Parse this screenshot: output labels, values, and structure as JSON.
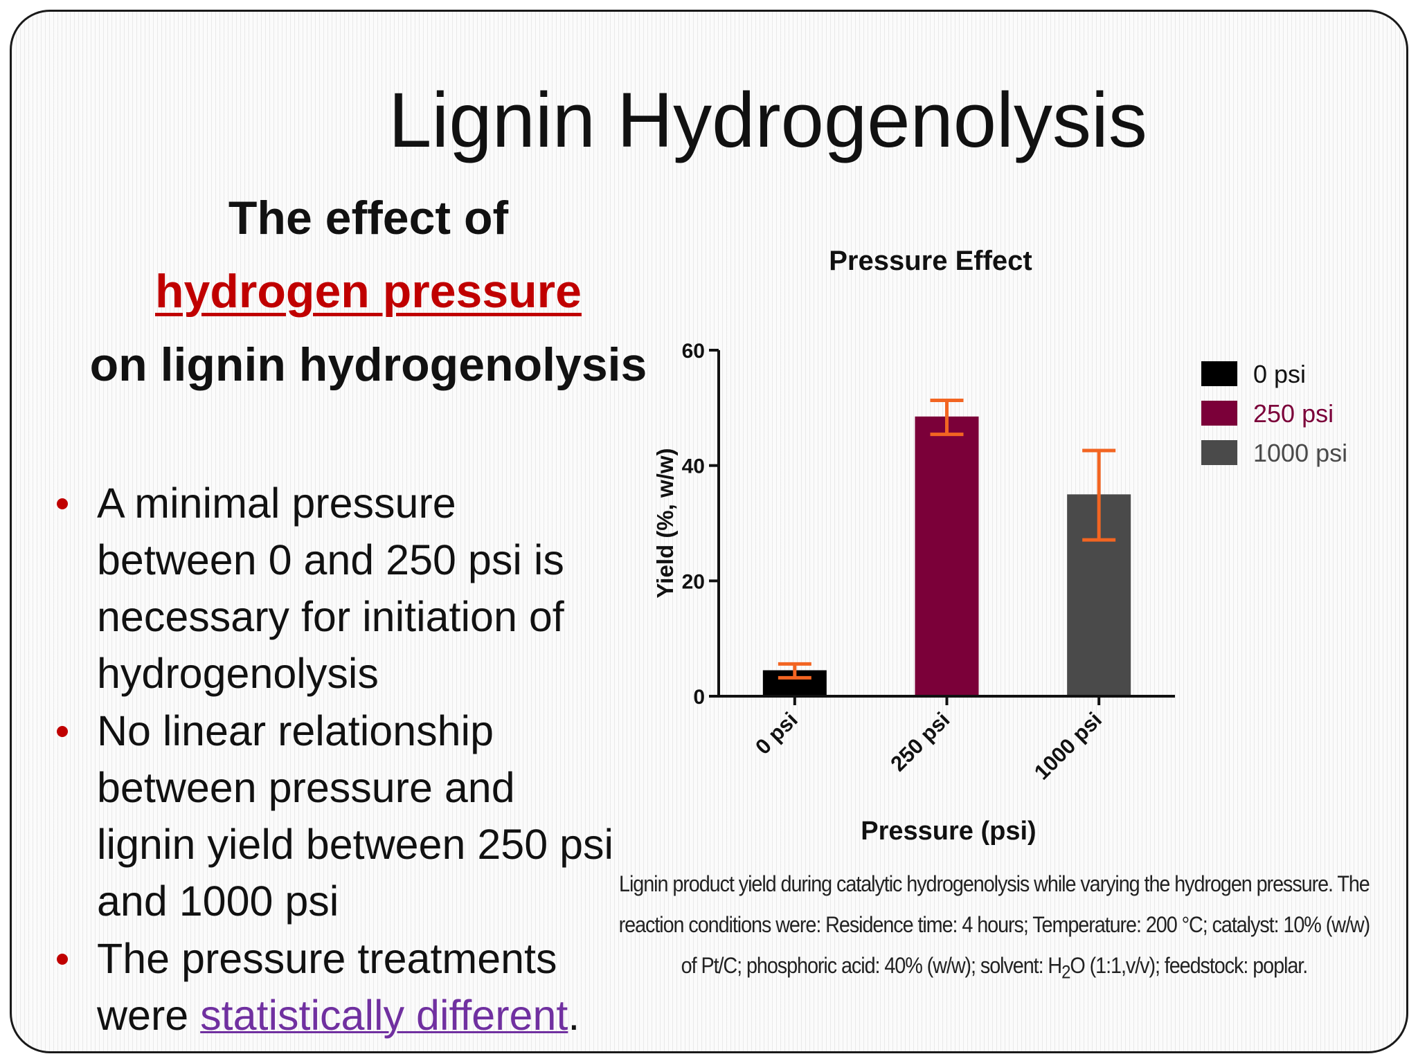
{
  "slide": {
    "title": "Lignin Hydrogenolysis",
    "subtitle": {
      "line1": "The effect of",
      "line2": "hydrogen pressure",
      "line3": "on lignin hydrogenolysis"
    },
    "bullets": [
      {
        "lines": [
          "A minimal pressure",
          "between 0 and 250 psi is",
          "necessary for initiation of",
          "hydrogenolysis"
        ]
      },
      {
        "lines": [
          "No linear relationship",
          "between pressure and",
          "lignin yield between 250 psi",
          "and 1000 psi"
        ]
      },
      {
        "lines": [
          "The pressure treatments"
        ],
        "last_prefix": "were ",
        "last_link": "statistically different",
        "last_suffix": "."
      }
    ],
    "caption": {
      "text1": "Lignin product yield during catalytic hydrogenolysis while varying the hydrogen pressure. The reaction conditions were:  Residence time: 4 hours; Temperature: 200 °C; catalyst: 10% (w/w) of Pt/C; phosphoric acid: 40% (w/w); solvent: H",
      "subscript": "2",
      "text2": "O (1:1,v/v); feedstock: poplar."
    }
  },
  "colors": {
    "accent_red": "#c00000",
    "link_purple": "#7030a0",
    "error_bar": "#f26522"
  },
  "chart_data": {
    "type": "bar",
    "title": "Pressure Effect",
    "xlabel": "Pressure (psi)",
    "ylabel": "Yield (%, w/w)",
    "categories": [
      "0 psi",
      "250 psi",
      "1000 psi"
    ],
    "values": [
      4.5,
      48.5,
      35
    ],
    "error_bars": [
      {
        "low": 3.2,
        "high": 5.6
      },
      {
        "low": 45.4,
        "high": 51.3
      },
      {
        "low": 27.1,
        "high": 42.6
      }
    ],
    "colors": [
      "#000000",
      "#7b0039",
      "#4a4a4a"
    ],
    "yticks": [
      "0",
      "20",
      "40",
      "60"
    ],
    "ylim": [
      0,
      60
    ],
    "legend": {
      "placement": "top-right",
      "items": [
        {
          "label": "0 psi",
          "color": "#000000"
        },
        {
          "label": "250 psi",
          "color": "#7b0039"
        },
        {
          "label": "1000 psi",
          "color": "#4a4a4a"
        }
      ]
    },
    "grid": false
  }
}
